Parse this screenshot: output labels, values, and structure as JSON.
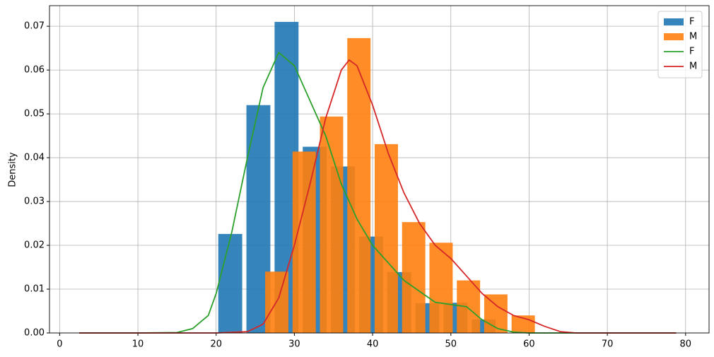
{
  "chart_data": {
    "type": "histogram",
    "ylabel": "Density",
    "xlim": [
      -1.3,
      83
    ],
    "ylim": [
      0,
      0.0747
    ],
    "xticks": [
      0,
      10,
      20,
      30,
      40,
      50,
      60,
      70,
      80
    ],
    "yticks": [
      {
        "value": 0,
        "label": "0.00"
      },
      {
        "value": 0.01,
        "label": "0.01"
      },
      {
        "value": 0.02,
        "label": "0.02"
      },
      {
        "value": 0.03,
        "label": "0.03"
      },
      {
        "value": 0.04,
        "label": "0.04"
      },
      {
        "value": 0.05,
        "label": "0.05"
      },
      {
        "value": 0.06,
        "label": "0.06"
      },
      {
        "value": 0.07,
        "label": "0.07"
      }
    ],
    "grid": true,
    "legend": "upper right",
    "rwidth": 0.85,
    "alpha": 0.9,
    "series": [
      {
        "name": "F",
        "color": "#1f77b4",
        "bins": [
          20,
          23.6,
          27.2,
          30.8,
          34.4,
          38,
          41.6,
          45.2,
          48.8,
          52.4,
          56
        ],
        "values": [
          0.0226,
          0.052,
          0.071,
          0.0425,
          0.038,
          0.022,
          0.0139,
          0.0068,
          0.0069,
          0.0031
        ]
      },
      {
        "name": "M",
        "color": "#ff7f0e",
        "bins": [
          26,
          29.5,
          33,
          36.5,
          40,
          43.5,
          47,
          50.5,
          54,
          57.5,
          61
        ],
        "values": [
          0.014,
          0.0414,
          0.0494,
          0.0673,
          0.0431,
          0.0253,
          0.0206,
          0.012,
          0.0088,
          0.004
        ]
      }
    ],
    "lines": [
      {
        "name": "F",
        "color": "#2ca02c",
        "x": [
          2.5,
          10,
          15,
          17,
          19,
          20,
          22,
          24,
          26,
          28,
          30,
          32,
          34,
          36,
          38,
          40,
          42,
          44,
          46,
          48,
          50,
          52,
          54,
          56,
          58,
          60,
          70,
          78.8
        ],
        "values": [
          0,
          0,
          0.0001,
          0.001,
          0.004,
          0.009,
          0.023,
          0.04,
          0.056,
          0.064,
          0.061,
          0.053,
          0.045,
          0.034,
          0.026,
          0.02,
          0.016,
          0.012,
          0.0095,
          0.007,
          0.0065,
          0.006,
          0.003,
          0.001,
          0.0002,
          0,
          0,
          0
        ]
      },
      {
        "name": "M",
        "color": "#d62728",
        "x": [
          2.5,
          20,
          24,
          26,
          28,
          30,
          32,
          34,
          36,
          37,
          38,
          40,
          42,
          44,
          46,
          48,
          50,
          52,
          54,
          56,
          58,
          60,
          62,
          64,
          66,
          78.8
        ],
        "values": [
          0,
          0,
          0.0003,
          0.002,
          0.008,
          0.02,
          0.034,
          0.049,
          0.06,
          0.0623,
          0.061,
          0.052,
          0.041,
          0.032,
          0.025,
          0.02,
          0.017,
          0.013,
          0.009,
          0.006,
          0.004,
          0.003,
          0.0015,
          0.0003,
          0,
          0
        ]
      }
    ]
  }
}
